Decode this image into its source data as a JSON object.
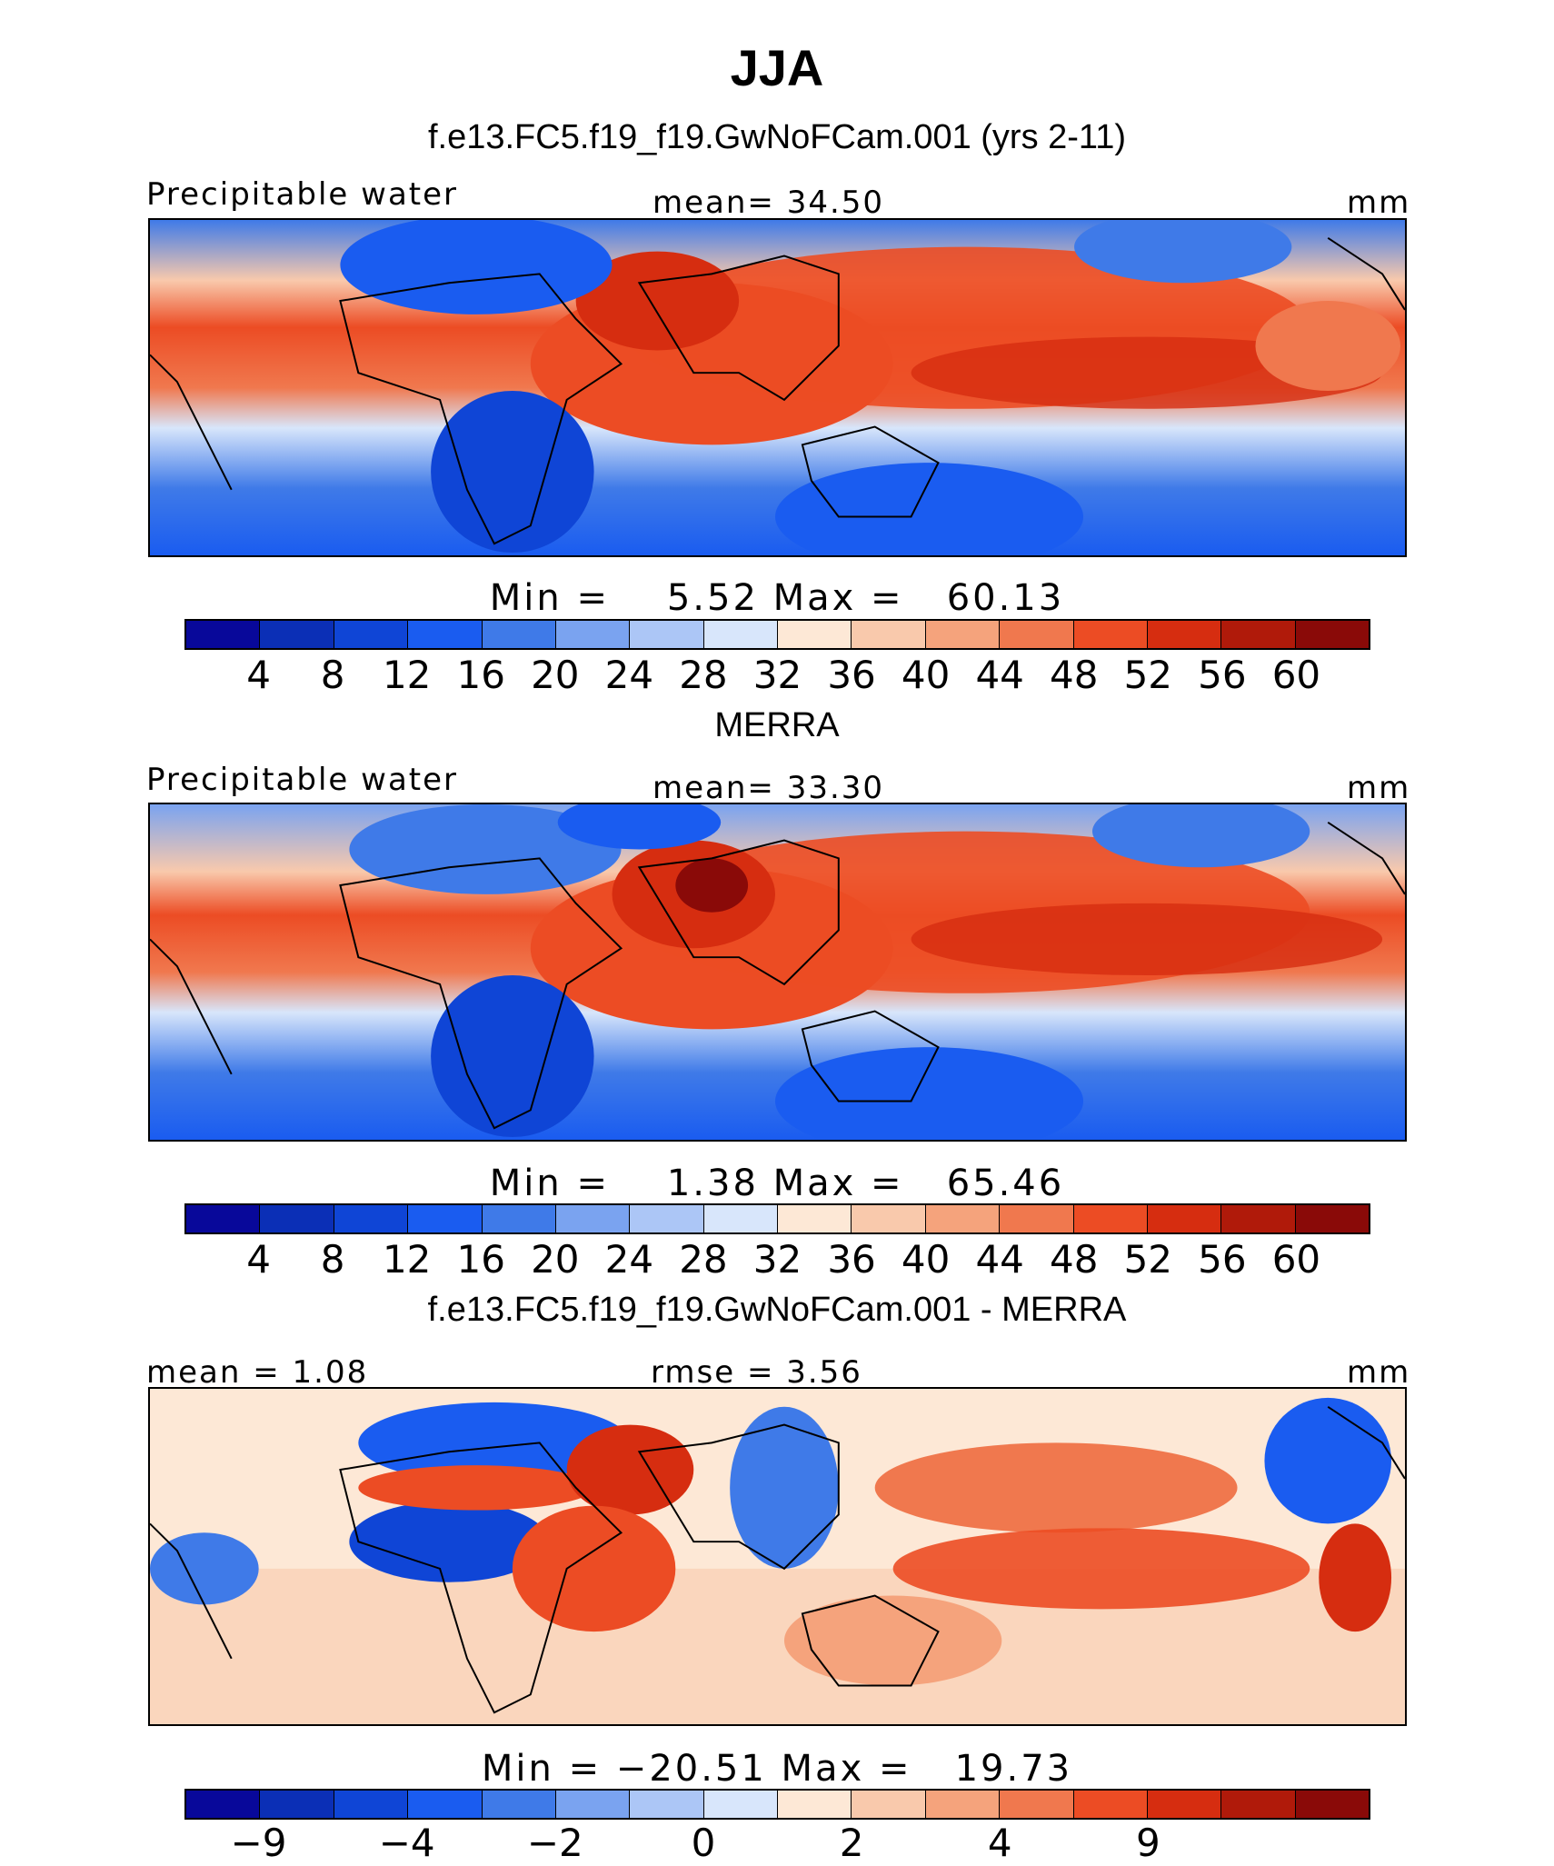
{
  "title": "JJA",
  "palettes": {
    "abs": [
      "#08089a",
      "#0b2fb6",
      "#0f45d6",
      "#1a5cf0",
      "#3f7ae8",
      "#7aa3f0",
      "#acc6f6",
      "#d8e6fb",
      "#fde8d6",
      "#f9c9ac",
      "#f5a37c",
      "#f0784e",
      "#ec4c24",
      "#d62d10",
      "#b01a0a",
      "#8a0a08"
    ],
    "diff": [
      "#08089a",
      "#0b2fb6",
      "#0f45d6",
      "#1a5cf0",
      "#3f7ae8",
      "#7aa3f0",
      "#acc6f6",
      "#d8e6fb",
      "#fde8d6",
      "#f9c9ac",
      "#f5a37c",
      "#f0784e",
      "#ec4c24",
      "#d62d10",
      "#b01a0a",
      "#8a0a08"
    ]
  },
  "panels": [
    {
      "subtitle": "f.e13.FC5.f19_f19.GwNoFCam.001 (yrs 2-11)",
      "left_label": "Precipitable water",
      "center_label": "mean=  34.50",
      "right_label": "mm",
      "min_max": "Min =    5.52 Max =   60.13",
      "palette": "abs",
      "ticks": [
        "4",
        "8",
        "12",
        "16",
        "20",
        "24",
        "28",
        "32",
        "36",
        "40",
        "44",
        "48",
        "52",
        "56",
        "60"
      ]
    },
    {
      "subtitle": "MERRA",
      "left_label": "Precipitable water",
      "center_label": "mean=  33.30",
      "right_label": "mm",
      "min_max": "Min =    1.38 Max =   65.46",
      "palette": "abs",
      "ticks": [
        "4",
        "8",
        "12",
        "16",
        "20",
        "24",
        "28",
        "32",
        "36",
        "40",
        "44",
        "48",
        "52",
        "56",
        "60"
      ]
    },
    {
      "subtitle": "f.e13.FC5.f19_f19.GwNoFCam.001 - MERRA",
      "left_label": "mean =   1.08",
      "center_label": "rmse =   3.56",
      "right_label": "mm",
      "min_max": "Min = −20.51 Max =   19.73",
      "palette": "diff",
      "ticks": [
        "−9",
        "",
        "−4",
        "",
        "−2",
        "",
        "0",
        "",
        "2",
        "",
        "4",
        "",
        "9",
        "",
        ""
      ]
    }
  ]
}
